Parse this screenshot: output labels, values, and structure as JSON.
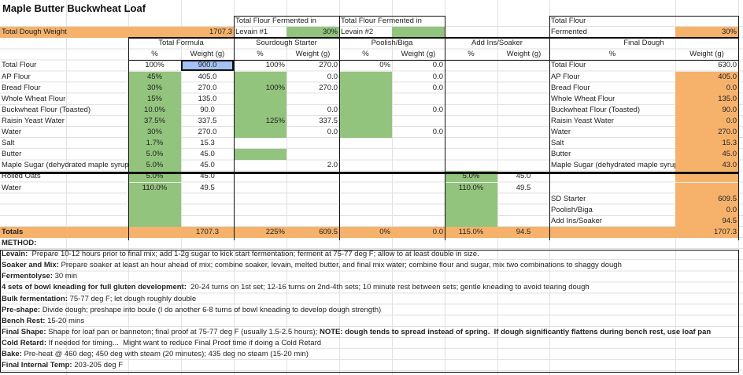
{
  "title": "Maple Butter Buckwheat Loaf",
  "header": {
    "tff1_label": "Total Flour Fermented in",
    "levain1_label": "Levain #1",
    "levain1_pct": "30%",
    "tff2_label": "Total Flour Fermented in",
    "levain2_label": "Levain #2",
    "tf_label": "Total Flour",
    "fermented_label": "Fermented",
    "fermented_pct": "30%",
    "tdw_label": "Total Dough Weight",
    "tdw_value": "1707.3"
  },
  "sections": {
    "total_formula": "Total Formula",
    "sourdough_starter": "Sourdough Starter",
    "poolish_biga": "Poolish/Biga",
    "add_ins": "Add Ins/Soaker",
    "final_dough": "Final Dough",
    "pct": "%",
    "weight": "Weight (g)"
  },
  "ingredients": [
    {
      "name": "Total Flour",
      "tf_pct": "100%",
      "tf_wt": "900.0",
      "sd_pct": "100%",
      "sd_wt": "270.0",
      "pb_pct": "0%",
      "pb_wt": "0.0",
      "ai_pct": "",
      "ai_wt": "",
      "fd_name": "Total Flour",
      "fd_wt": "630.0"
    },
    {
      "name": "AP Flour",
      "tf_pct": "45%",
      "tf_wt": "405.0",
      "sd_pct": "",
      "sd_wt": "0.0",
      "pb_pct": "",
      "pb_wt": "0.0",
      "ai_pct": "",
      "ai_wt": "",
      "fd_name": "AP Flour",
      "fd_wt": "405.0"
    },
    {
      "name": "Bread Flour",
      "tf_pct": "30%",
      "tf_wt": "270.0",
      "sd_pct": "100%",
      "sd_wt": "270.0",
      "pb_pct": "",
      "pb_wt": "0.0",
      "ai_pct": "",
      "ai_wt": "",
      "fd_name": "Bread Flour",
      "fd_wt": "0.0"
    },
    {
      "name": "Whole Wheat Flour",
      "tf_pct": "15%",
      "tf_wt": "135.0",
      "sd_pct": "",
      "sd_wt": "",
      "pb_pct": "",
      "pb_wt": "",
      "ai_pct": "",
      "ai_wt": "",
      "fd_name": "Whole Wheat Flour",
      "fd_wt": "135.0"
    },
    {
      "name": "Buckwheat Flour (Toasted)",
      "tf_pct": "10.0%",
      "tf_wt": "90.0",
      "sd_pct": "",
      "sd_wt": "0.0",
      "pb_pct": "",
      "pb_wt": "0.0",
      "ai_pct": "",
      "ai_wt": "",
      "fd_name": "Buckwheat Flour (Toasted)",
      "fd_wt": "90.0"
    },
    {
      "name": "Raisin Yeast Water",
      "tf_pct": "37.5%",
      "tf_wt": "337.5",
      "sd_pct": "125%",
      "sd_wt": "337.5",
      "pb_pct": "",
      "pb_wt": "",
      "ai_pct": "",
      "ai_wt": "",
      "fd_name": "Raisin Yeast Water",
      "fd_wt": "0.0"
    },
    {
      "name": "Water",
      "tf_pct": "30%",
      "tf_wt": "270.0",
      "sd_pct": "",
      "sd_wt": "0.0",
      "pb_pct": "",
      "pb_wt": "0.0",
      "ai_pct": "",
      "ai_wt": "",
      "fd_name": "Water",
      "fd_wt": "270.0"
    },
    {
      "name": "Salt",
      "tf_pct": "1.7%",
      "tf_wt": "15.3",
      "sd_pct": "",
      "sd_wt": "",
      "pb_pct": "",
      "pb_wt": "",
      "ai_pct": "",
      "ai_wt": "",
      "fd_name": "Salt",
      "fd_wt": "15.3"
    },
    {
      "name": "Butter",
      "tf_pct": "5.0%",
      "tf_wt": "45.0",
      "sd_pct": "",
      "sd_wt": "",
      "pb_pct": "",
      "pb_wt": "",
      "ai_pct": "",
      "ai_wt": "",
      "fd_name": "Butter",
      "fd_wt": "45.0"
    },
    {
      "name": "Maple Sugar (dehydrated maple syrup)",
      "tf_pct": "5.0%",
      "tf_wt": "45.0",
      "sd_pct": "",
      "sd_wt": "2.0",
      "pb_pct": "",
      "pb_wt": "",
      "ai_pct": "",
      "ai_wt": "",
      "fd_name": "Maple Sugar (dehydrated maple syrup)",
      "fd_wt": "43.0"
    },
    {
      "name": "Rolled Oats",
      "tf_pct": "5.0%",
      "tf_wt": "45.0",
      "sd_pct": "",
      "sd_wt": "",
      "pb_pct": "",
      "pb_wt": "",
      "ai_pct": "5.0%",
      "ai_wt": "45.0",
      "fd_name": "",
      "fd_wt": ""
    },
    {
      "name": "Water",
      "tf_pct": "110.0%",
      "tf_wt": "49.5",
      "sd_pct": "",
      "sd_wt": "",
      "pb_pct": "",
      "pb_wt": "",
      "ai_pct": "110.0%",
      "ai_wt": "49.5",
      "fd_name": "",
      "fd_wt": ""
    },
    {
      "name": "",
      "tf_pct": "",
      "tf_wt": "",
      "sd_pct": "",
      "sd_wt": "",
      "pb_pct": "",
      "pb_wt": "",
      "ai_pct": "",
      "ai_wt": "",
      "fd_name": "SD Starter",
      "fd_wt": "609.5"
    },
    {
      "name": "",
      "tf_pct": "",
      "tf_wt": "",
      "sd_pct": "",
      "sd_wt": "",
      "pb_pct": "",
      "pb_wt": "",
      "ai_pct": "",
      "ai_wt": "",
      "fd_name": "Poolish/Biga",
      "fd_wt": "0.0"
    },
    {
      "name": "",
      "tf_pct": "",
      "tf_wt": "",
      "sd_pct": "",
      "sd_wt": "",
      "pb_pct": "",
      "pb_wt": "",
      "ai_pct": "",
      "ai_wt": "",
      "fd_name": "Add Ins/Soaker",
      "fd_wt": "94.5"
    }
  ],
  "totals": {
    "name": "Totals",
    "tf_pct": "",
    "tf_wt": "1707.3",
    "sd_pct": "225%",
    "sd_wt": "609.5",
    "pb_pct": "0%",
    "pb_wt": "0.0",
    "ai_pct": "115.0%",
    "ai_wt": "94.5",
    "fd_name": "",
    "fd_wt": "1707.3"
  },
  "method": {
    "heading": "METHOD:",
    "steps": [
      {
        "label": "Levain:",
        "text": "  Prepare 10-12 hours prior to final mix; add 1-2g sugar to kick start fermentation; ferment at 75-77 deg F; allow to at least double in size.",
        "note": "",
        "note_text": ""
      },
      {
        "label": "Soaker and Mix:",
        "text": " Prepare soaker at least an hour ahead of mix; combine soaker, levain, melted butter, and final mix water; combine flour and sugar, mix two combinations to shaggy dough",
        "note": "",
        "note_text": ""
      },
      {
        "label": "Fermentolyse:",
        "text": " 30 min",
        "note": "",
        "note_text": ""
      },
      {
        "label": "4 sets of bowl kneading for full gluten development:",
        "text": "  20-24 turns on 1st set; 12-16 turns on 2nd-4th sets; 10 minute rest between sets; gentle kneading to avoid tearing dough",
        "note": "",
        "note_text": ""
      },
      {
        "label": "Bulk fermentation:",
        "text": " 75-77 deg F; let dough roughly double",
        "note": "",
        "note_text": ""
      },
      {
        "label": "Pre-shape:",
        "text": " Divide dough; preshape into boule (I do another 6-8 turns of bowl kneading to develop dough strength)",
        "note": "",
        "note_text": ""
      },
      {
        "label": "Bench Rest:",
        "text": " 15-20 mins",
        "note": "",
        "note_text": ""
      },
      {
        "label": "Final Shape:",
        "text": " Shape for loaf pan or banneton; final proof at 75-77 deg F (usually 1.5-2.5 hours); ",
        "note": "NOTE: dough tends to spread instead of spring.  If dough significantly flattens during bench rest, use loaf pan",
        "note_text": ""
      },
      {
        "label": "Cold Retard:",
        "text": " If needed for timing...  Might want to reduce Final Proof time if doing a Cold Retard",
        "note": "",
        "note_text": ""
      },
      {
        "label": "Bake:",
        "text": " Pre-heat @ 460 deg; 450 deg with steam (20 minutes); 435 deg no steam (15-20 min)",
        "note": "",
        "note_text": ""
      },
      {
        "label": "Final Internal Temp:",
        "text": " 203-205 deg F",
        "note": "",
        "note_text": ""
      }
    ]
  },
  "colors": {
    "green": "#93c47d",
    "orange": "#f6b26b",
    "blue": "#a4c2f4"
  }
}
